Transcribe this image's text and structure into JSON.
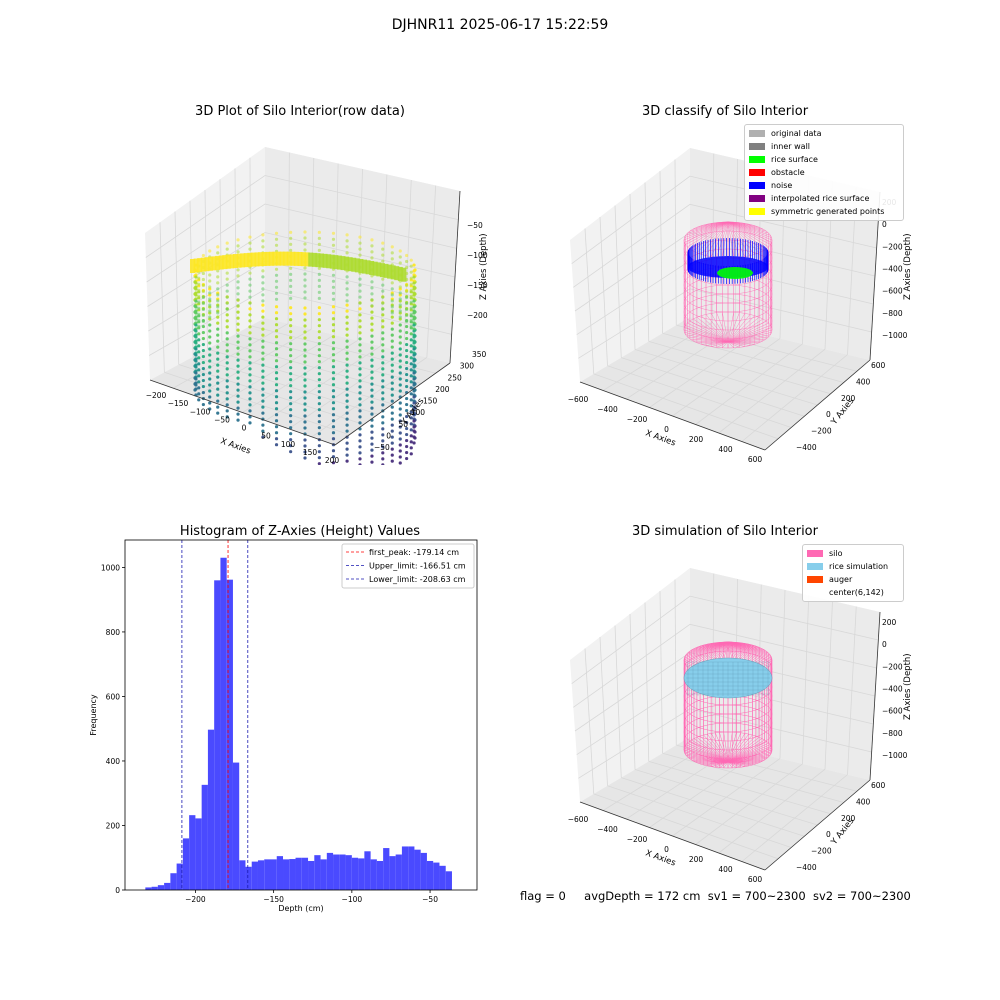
{
  "suptitle": "DJHNR11 2025-06-17 15:22:59",
  "colors": {
    "histogram_bar": "#4a4aff",
    "first_peak_line": "#ff0000",
    "limit_lines": "#1a1ab0",
    "silo_wire": "#ff69b4",
    "rice_simulation": "#87ceeb",
    "auger": "#ff4500",
    "noise": "#0000ff",
    "rice_surface": "#00ff00",
    "viridis_low": "#440154",
    "viridis_high": "#fde725"
  },
  "panels": {
    "raw": {
      "title": "3D Plot of Silo Interior(row data)",
      "xlabel": "X Axies",
      "ylabel": "Y Axies",
      "zlabel": "Z Axies (Depth)",
      "x_ticks": [
        "−200",
        "−150",
        "−100",
        "−50",
        "0",
        "50",
        "100",
        "150",
        "200"
      ],
      "y_ticks": [
        "−50",
        "0",
        "50",
        "100",
        "150",
        "200",
        "250",
        "300",
        "350"
      ],
      "z_ticks": [
        "−50",
        "−100",
        "−150",
        "−200"
      ]
    },
    "classify": {
      "title": "3D classify of Silo Interior",
      "xlabel": "X Axies",
      "ylabel": "Y Axies",
      "zlabel": "Z Axies (Depth)",
      "x_ticks": [
        "−600",
        "−400",
        "−200",
        "0",
        "200",
        "400",
        "600"
      ],
      "y_ticks": [
        "−400",
        "−200",
        "0",
        "200",
        "400",
        "600"
      ],
      "z_ticks": [
        "200",
        "0",
        "−200",
        "−400",
        "−600",
        "−800",
        "−1000"
      ],
      "legend": [
        {
          "label": "original data",
          "color": "#b0b0b0"
        },
        {
          "label": "inner wall",
          "color": "#808080"
        },
        {
          "label": "rice surface",
          "color": "#00ff00"
        },
        {
          "label": "obstacle",
          "color": "#ff0000"
        },
        {
          "label": "noise",
          "color": "#0000ff"
        },
        {
          "label": "interpolated rice surface",
          "color": "#800080"
        },
        {
          "label": "symmetric generated points",
          "color": "#ffff00"
        }
      ]
    },
    "simulation": {
      "title": "3D simulation of Silo Interior",
      "xlabel": "X Axies",
      "ylabel": "Y Axies",
      "zlabel": "Z Axies (Depth)",
      "x_ticks": [
        "−600",
        "−400",
        "−200",
        "0",
        "200",
        "400",
        "600"
      ],
      "y_ticks": [
        "−400",
        "−200",
        "0",
        "200",
        "400",
        "600"
      ],
      "z_ticks": [
        "200",
        "0",
        "−200",
        "−400",
        "−600",
        "−800",
        "−1000"
      ],
      "legend": [
        {
          "label": "silo",
          "color": "#ff69b4"
        },
        {
          "label": "rice simulation",
          "color": "#87ceeb"
        },
        {
          "label": "auger",
          "color": "#ff4500"
        },
        {
          "label": "center(6,142)",
          "color": ""
        }
      ]
    }
  },
  "footer": {
    "flag": "flag = 0",
    "avg_depth": "avgDepth = 172 cm",
    "sv1": "sv1 = 700~2300",
    "sv2": "sv2 = 700~2300"
  },
  "chart_data": [
    {
      "type": "bar",
      "title": "Histogram of Z-Axies (Height) Values",
      "xlabel": "Depth (cm)",
      "ylabel": "Frequency",
      "xlim": [
        -245,
        -20
      ],
      "ylim": [
        0,
        1085
      ],
      "x_ticks": [
        -200,
        -150,
        -100,
        -50
      ],
      "x_tick_labels": [
        "−200",
        "−150",
        "−100",
        "−50"
      ],
      "y_ticks": [
        0,
        200,
        400,
        600,
        800,
        1000
      ],
      "bin_width": 4.0,
      "bin_start": -232.0,
      "values": [
        8,
        10,
        15,
        22,
        52,
        82,
        160,
        232,
        222,
        326,
        497,
        960,
        1030,
        962,
        395,
        92,
        72,
        88,
        92,
        95,
        95,
        105,
        95,
        96,
        100,
        100,
        90,
        108,
        95,
        115,
        110,
        110,
        108,
        100,
        98,
        120,
        95,
        90,
        130,
        105,
        110,
        135,
        135,
        125,
        115,
        90,
        85,
        75,
        58
      ],
      "vlines": [
        {
          "name": "first_peak: -179.14 cm",
          "x": -179.14,
          "color": "#ff0000"
        },
        {
          "name": "Upper_limit: -166.51 cm",
          "x": -166.51,
          "color": "#1a1ab0"
        },
        {
          "name": "Lower_limit: -208.63 cm",
          "x": -208.63,
          "color": "#1a1ab0"
        }
      ],
      "legend_position": "top-right",
      "grid": false
    }
  ]
}
